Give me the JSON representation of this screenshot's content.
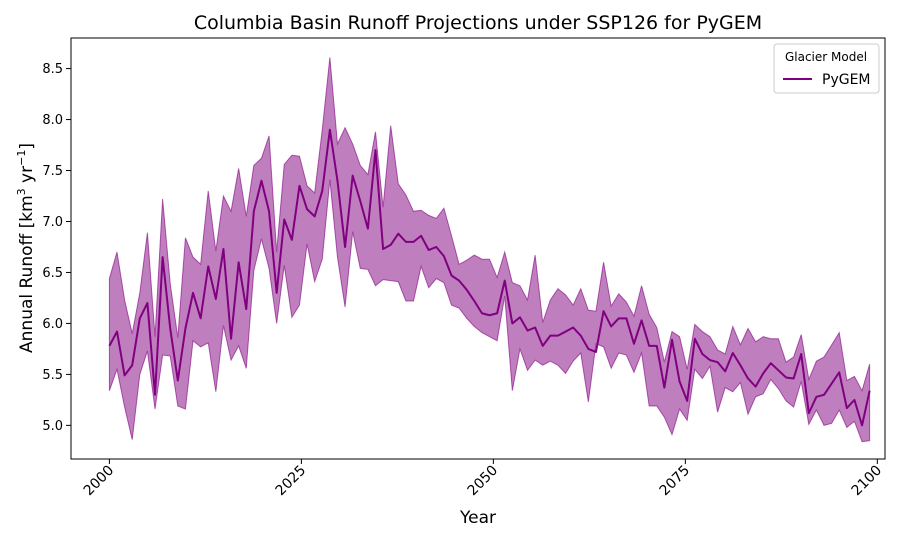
{
  "chart_data": {
    "type": "line",
    "title": "Columbia Basin Runoff Projections under SSP126 for PyGEM",
    "xlabel": "Year",
    "ylabel_main": "Annual Runoff [km",
    "ylabel_sup1": "3",
    "ylabel_mid": " yr",
    "ylabel_sup2": "−1",
    "ylabel_end": "]",
    "xlim": [
      1995,
      2101
    ],
    "ylim": [
      4.67,
      8.8
    ],
    "xticks": [
      2000,
      2025,
      2050,
      2075,
      2100
    ],
    "xtick_labels": [
      "2000",
      "2025",
      "2050",
      "2075",
      "2100"
    ],
    "yticks": [
      5.0,
      5.5,
      6.0,
      6.5,
      7.0,
      7.5,
      8.0,
      8.5
    ],
    "ytick_labels": [
      "5.0",
      "5.5",
      "6.0",
      "6.5",
      "7.0",
      "7.5",
      "8.0",
      "8.5"
    ],
    "grid": false,
    "legend": {
      "title": "Glacier Model",
      "placement": "top-right"
    },
    "series": [
      {
        "name": "PyGEM",
        "color": "#800080",
        "band_color": "#800080",
        "band_opacity": 0.5,
        "x_start": 2000,
        "x_end": 2099,
        "mean": [
          5.78,
          5.92,
          5.49,
          5.59,
          6.05,
          6.2,
          5.3,
          6.65,
          5.95,
          5.44,
          5.95,
          6.3,
          6.05,
          6.56,
          6.24,
          6.73,
          5.85,
          6.6,
          6.14,
          7.1,
          7.4,
          7.1,
          6.3,
          7.02,
          6.82,
          7.35,
          7.12,
          7.05,
          7.3,
          7.9,
          7.4,
          6.75,
          7.45,
          7.2,
          6.93,
          7.7,
          6.73,
          6.77,
          6.88,
          6.8,
          6.8,
          6.86,
          6.72,
          6.75,
          6.66,
          6.47,
          6.42,
          6.33,
          6.22,
          6.1,
          6.08,
          6.1,
          6.42,
          6.0,
          6.06,
          5.93,
          5.96,
          5.78,
          5.88,
          5.88,
          5.92,
          5.96,
          5.88,
          5.75,
          5.72,
          6.12,
          5.97,
          6.05,
          6.05,
          5.8,
          6.03,
          5.78,
          5.78,
          5.37,
          5.84,
          5.43,
          5.24,
          5.85,
          5.7,
          5.64,
          5.62,
          5.53,
          5.71,
          5.59,
          5.46,
          5.38,
          5.51,
          5.61,
          5.54,
          5.47,
          5.46,
          5.7,
          5.12,
          5.28,
          5.3,
          5.41,
          5.52,
          5.17,
          5.25,
          5.0,
          5.34
        ],
        "upper": [
          6.44,
          6.7,
          6.23,
          5.9,
          6.3,
          6.89,
          5.87,
          7.22,
          6.39,
          5.86,
          6.84,
          6.65,
          6.58,
          7.3,
          6.71,
          7.25,
          7.1,
          7.52,
          7.05,
          7.55,
          7.62,
          7.84,
          6.7,
          7.56,
          7.65,
          7.64,
          7.35,
          7.28,
          7.9,
          8.61,
          7.76,
          7.92,
          7.76,
          7.55,
          7.46,
          7.88,
          7.14,
          7.94,
          7.37,
          7.26,
          7.1,
          7.11,
          7.06,
          7.03,
          7.13,
          6.86,
          6.58,
          6.62,
          6.67,
          6.63,
          6.63,
          6.45,
          6.7,
          6.4,
          6.37,
          6.23,
          6.67,
          6.01,
          6.23,
          6.34,
          6.28,
          6.18,
          6.34,
          6.13,
          6.12,
          6.6,
          6.17,
          6.29,
          6.21,
          6.07,
          6.37,
          6.09,
          5.96,
          5.62,
          5.92,
          5.87,
          5.55,
          5.99,
          5.92,
          5.87,
          5.74,
          5.7,
          5.97,
          5.79,
          5.95,
          5.82,
          5.87,
          5.85,
          5.85,
          5.62,
          5.67,
          5.89,
          5.45,
          5.63,
          5.67,
          5.79,
          5.91,
          5.44,
          5.48,
          5.34,
          5.6
        ],
        "lower": [
          5.34,
          5.55,
          5.18,
          4.86,
          5.5,
          5.73,
          5.16,
          5.69,
          5.68,
          5.19,
          5.16,
          5.83,
          5.77,
          5.81,
          5.33,
          5.98,
          5.64,
          5.78,
          5.56,
          6.52,
          6.83,
          6.54,
          6.0,
          6.57,
          6.06,
          6.18,
          6.78,
          6.41,
          6.63,
          7.41,
          6.65,
          6.16,
          6.9,
          6.54,
          6.53,
          6.37,
          6.43,
          6.42,
          6.41,
          6.22,
          6.22,
          6.56,
          6.35,
          6.44,
          6.4,
          6.18,
          6.15,
          6.05,
          5.97,
          5.91,
          5.87,
          5.83,
          6.27,
          5.34,
          5.75,
          5.54,
          5.64,
          5.59,
          5.63,
          5.59,
          5.51,
          5.63,
          5.71,
          5.23,
          5.8,
          5.77,
          5.56,
          5.71,
          5.69,
          5.52,
          5.71,
          5.19,
          5.19,
          5.08,
          4.91,
          5.16,
          5.05,
          5.55,
          5.46,
          5.58,
          5.13,
          5.37,
          5.33,
          5.42,
          5.11,
          5.28,
          5.31,
          5.45,
          5.36,
          5.24,
          5.18,
          5.43,
          5.01,
          5.15,
          5.0,
          5.02,
          5.15,
          4.98,
          5.04,
          4.84,
          4.85
        ]
      }
    ]
  }
}
